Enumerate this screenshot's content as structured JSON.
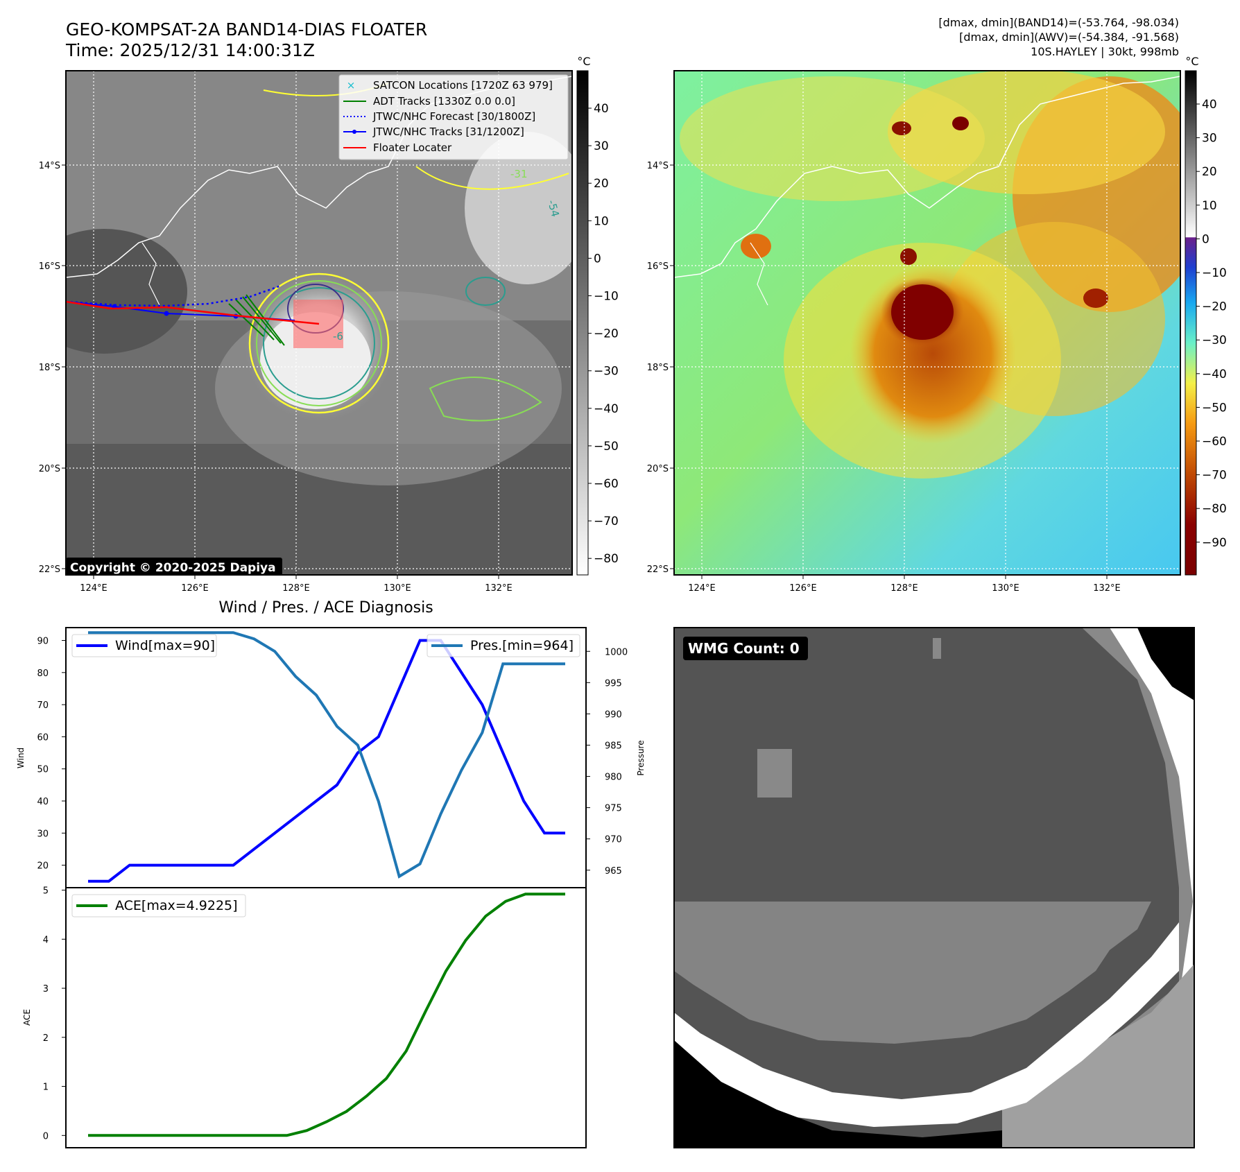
{
  "header": {
    "title_line1": "GEO-KOMPSAT-2A BAND14-DIAS FLOATER",
    "title_line2": "Time: 2025/12/31 14:00:31Z",
    "info_line1": "[dmax, dmin](BAND14)=(-53.764, -98.034)",
    "info_line2": "[dmax, dmin](AWV)=(-54.384, -91.568)",
    "info_line3": "10S.HAYLEY | 30kt, 998mb",
    "copyright": "Copyright © 2020-2025 Dapiya"
  },
  "maps": {
    "lon_ticks": [
      "124°E",
      "126°E",
      "128°E",
      "130°E",
      "132°E"
    ],
    "lat_ticks": [
      "14°S",
      "16°S",
      "18°S",
      "20°S",
      "22°S"
    ],
    "contour_labels": [
      "-54",
      "-31",
      "-6"
    ],
    "colorbar_unit": "°C",
    "left_colorbar_ticks": [
      "40",
      "30",
      "20",
      "10",
      "0",
      "−10",
      "−20",
      "−30",
      "−40",
      "−50",
      "−60",
      "−70",
      "−80"
    ],
    "right_colorbar_ticks": [
      "40",
      "30",
      "20",
      "10",
      "0",
      "−10",
      "−20",
      "−30",
      "−40",
      "−50",
      "−60",
      "−70",
      "−80",
      "−90"
    ],
    "legend": [
      {
        "label": "SATCON Locations [1720Z 63 979]",
        "color": "#17becf"
      },
      {
        "label": "ADT Tracks [1330Z 0.0 0.0]",
        "color": "#008000"
      },
      {
        "label": "JTWC/NHC Forecast [30/1800Z]",
        "color": "#0000ff"
      },
      {
        "label": "JTWC/NHC Tracks [31/1200Z]",
        "color": "#0000ff"
      },
      {
        "label": "Floater Locater",
        "color": "#ff0000"
      }
    ]
  },
  "chart_data": [
    {
      "type": "line",
      "title": "Wind / Pres. / ACE Diagnosis",
      "ylabel": "Wind",
      "ylabel_right": "Pressure",
      "ylim": [
        13,
        94
      ],
      "ylim_right": [
        962.2,
        1003.8
      ],
      "yticks": [
        20,
        30,
        40,
        50,
        60,
        70,
        80,
        90
      ],
      "yticks_right": [
        965,
        970,
        975,
        980,
        985,
        990,
        995,
        1000
      ],
      "series": [
        {
          "name": "Wind[max=90]",
          "color": "#0000ff",
          "axis": "left",
          "values": [
            15,
            15,
            20,
            20,
            20,
            20,
            20,
            20,
            25,
            30,
            35,
            40,
            45,
            55,
            60,
            75,
            90,
            90,
            80,
            70,
            55,
            40,
            30,
            30
          ]
        },
        {
          "name": "Pres.[min=964]",
          "color": "#1f77b4",
          "axis": "right",
          "values": [
            1003,
            1003,
            1003,
            1003,
            1003,
            1003,
            1003,
            1003,
            1002,
            1000,
            996,
            993,
            988,
            985,
            976,
            964,
            966,
            974,
            981,
            987,
            998,
            998,
            998,
            998
          ]
        }
      ]
    },
    {
      "type": "line",
      "ylabel": "ACE",
      "ylim": [
        -0.25,
        5.05
      ],
      "yticks": [
        0,
        1,
        2,
        3,
        4,
        5
      ],
      "series": [
        {
          "name": "ACE[max=4.9225]",
          "color": "#008000",
          "values": [
            0,
            0,
            0,
            0,
            0,
            0,
            0,
            0,
            0,
            0,
            0,
            0.1,
            0.28,
            0.49,
            0.8,
            1.16,
            1.72,
            2.55,
            3.35,
            3.98,
            4.47,
            4.77,
            4.92,
            4.92,
            4.92
          ]
        }
      ]
    }
  ],
  "wmg": {
    "label": "WMG Count: 0"
  }
}
